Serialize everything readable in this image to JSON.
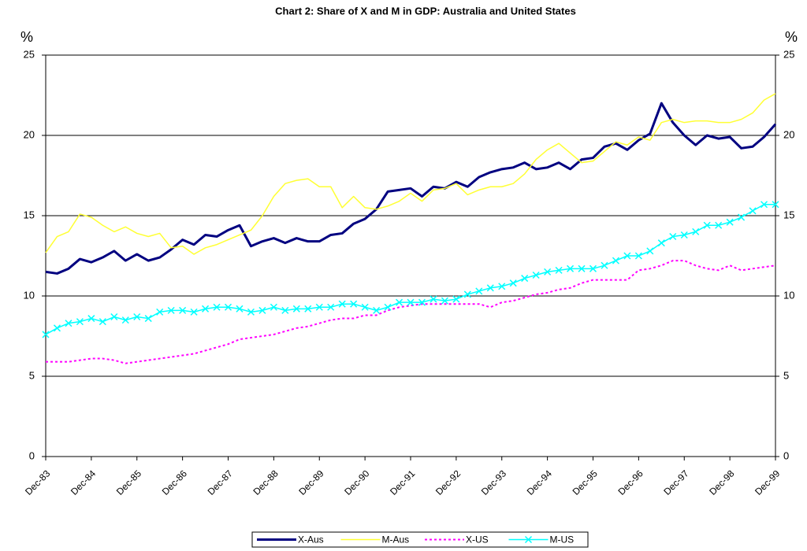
{
  "chart_data": {
    "type": "line",
    "title": "Chart 2: Share of X and M in GDP: Australia and United States",
    "ylabel": "%",
    "y2label": "%",
    "categories": [
      "Dec-83",
      null,
      null,
      null,
      "Dec-84",
      null,
      null,
      null,
      "Dec-85",
      null,
      null,
      null,
      "Dec-86",
      null,
      null,
      null,
      "Dec-87",
      null,
      null,
      null,
      "Dec-88",
      null,
      null,
      null,
      "Dec-89",
      null,
      null,
      null,
      "Dec-90",
      null,
      null,
      null,
      "Dec-91",
      null,
      null,
      null,
      "Dec-92",
      null,
      null,
      null,
      "Dec-93",
      null,
      null,
      null,
      "Dec-94",
      null,
      null,
      null,
      "Dec-95",
      null,
      null,
      null,
      "Dec-96",
      null,
      null,
      null,
      "Dec-97",
      null,
      null,
      null,
      "Dec-98",
      null,
      null,
      null,
      "Dec-99"
    ],
    "series": [
      {
        "name": "X-Aus",
        "color": "#000080",
        "width": 3,
        "values": [
          11.5,
          11.4,
          11.7,
          12.3,
          12.1,
          12.4,
          12.8,
          12.2,
          12.6,
          12.2,
          12.4,
          12.9,
          13.5,
          13.2,
          13.8,
          13.7,
          14.1,
          14.4,
          13.1,
          13.4,
          13.6,
          13.3,
          13.6,
          13.4,
          13.4,
          13.8,
          13.9,
          14.5,
          14.8,
          15.4,
          16.5,
          16.6,
          16.7,
          16.2,
          16.8,
          16.7,
          17.1,
          16.8,
          17.4,
          17.7,
          17.9,
          18.0,
          18.3,
          17.9,
          18.0,
          18.3,
          17.9,
          18.5,
          18.6,
          19.3,
          19.5,
          19.1,
          19.7,
          20.1,
          22.0,
          20.8,
          20.0,
          19.4,
          20.0,
          19.8,
          19.9,
          19.2,
          19.3,
          19.9,
          20.7
        ]
      },
      {
        "name": "M-Aus",
        "color": "#ffff33",
        "width": 1.5,
        "values": [
          12.7,
          13.7,
          14.0,
          15.1,
          14.9,
          14.4,
          14.0,
          14.3,
          13.9,
          13.7,
          13.9,
          13.0,
          13.1,
          12.6,
          13.0,
          13.2,
          13.5,
          13.8,
          14.1,
          15.0,
          16.2,
          17.0,
          17.2,
          17.3,
          16.8,
          16.8,
          15.5,
          16.2,
          15.5,
          15.4,
          15.6,
          15.9,
          16.4,
          15.9,
          16.6,
          16.7,
          17.0,
          16.3,
          16.6,
          16.8,
          16.8,
          17.0,
          17.6,
          18.5,
          19.1,
          19.5,
          18.9,
          18.3,
          18.4,
          19.0,
          19.6,
          19.4,
          19.9,
          19.7,
          20.8,
          21.0,
          20.8,
          20.9,
          20.9,
          20.8,
          20.8,
          21.0,
          21.4,
          22.2,
          22.6
        ]
      },
      {
        "name": "X-US",
        "color": "#ff00ff",
        "width": 2,
        "dashed": true,
        "values": [
          5.9,
          5.9,
          5.9,
          6.0,
          6.1,
          6.1,
          6.0,
          5.8,
          5.9,
          6.0,
          6.1,
          6.2,
          6.3,
          6.4,
          6.6,
          6.8,
          7.0,
          7.3,
          7.4,
          7.5,
          7.6,
          7.8,
          8.0,
          8.1,
          8.3,
          8.5,
          8.6,
          8.6,
          8.8,
          8.8,
          9.1,
          9.3,
          9.4,
          9.5,
          9.5,
          9.5,
          9.5,
          9.5,
          9.5,
          9.3,
          9.6,
          9.7,
          9.9,
          10.1,
          10.2,
          10.4,
          10.5,
          10.8,
          11.0,
          11.0,
          11.0,
          11.0,
          11.6,
          11.7,
          11.9,
          12.2,
          12.2,
          11.9,
          11.7,
          11.6,
          11.9,
          11.6,
          11.7,
          11.8,
          11.9
        ]
      },
      {
        "name": "M-US",
        "color": "#00ffff",
        "width": 1.5,
        "marker": "x",
        "values": [
          7.6,
          8.0,
          8.3,
          8.4,
          8.6,
          8.4,
          8.7,
          8.5,
          8.7,
          8.6,
          9.0,
          9.1,
          9.1,
          9.0,
          9.2,
          9.3,
          9.3,
          9.2,
          9.0,
          9.1,
          9.3,
          9.1,
          9.2,
          9.2,
          9.3,
          9.3,
          9.5,
          9.5,
          9.3,
          9.1,
          9.3,
          9.6,
          9.6,
          9.6,
          9.8,
          9.7,
          9.8,
          10.1,
          10.3,
          10.5,
          10.6,
          10.8,
          11.1,
          11.3,
          11.5,
          11.6,
          11.7,
          11.7,
          11.7,
          11.9,
          12.2,
          12.5,
          12.5,
          12.8,
          13.3,
          13.7,
          13.8,
          14.0,
          14.4,
          14.4,
          14.6,
          14.9,
          15.3,
          15.7,
          15.7
        ]
      }
    ],
    "ylim": [
      0,
      25
    ],
    "yticks": [
      0,
      5,
      10,
      15,
      20,
      25
    ],
    "y2lim": [
      0,
      25
    ],
    "y2ticks": [
      0,
      5,
      10,
      15,
      20,
      25
    ],
    "grid": true,
    "legend": "bottom"
  }
}
